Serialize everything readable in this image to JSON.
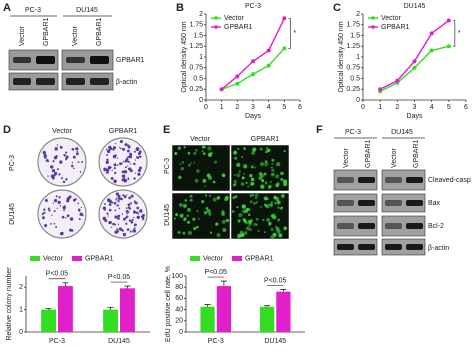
{
  "figure": {
    "letters": [
      "A",
      "B",
      "C",
      "D",
      "E",
      "F"
    ],
    "a": {
      "groups": [
        "PC-3",
        "DU145"
      ],
      "lanes": [
        "Vector",
        "GPBAR1",
        "Vector",
        "GPBAR1"
      ],
      "rows": [
        "GPBAR1",
        "β-actin"
      ]
    },
    "d": {
      "columns": [
        "Vector",
        "GPBAR1"
      ],
      "rows": [
        "PC-3",
        "DU145"
      ]
    },
    "e": {
      "columns": [
        "Vector",
        "GPBAR1"
      ],
      "rows": [
        "PC-3",
        "DU145"
      ]
    },
    "f": {
      "groups": [
        "PC-3",
        "DU145"
      ],
      "lanes": [
        "Vector",
        "GPBAR1",
        "Vector",
        "GPBAR1"
      ],
      "rows": [
        "Cleaved-casp",
        "Bax",
        "Bcl-2",
        "β-actin"
      ]
    }
  },
  "chart_data": [
    {
      "type": "line",
      "title": "PC-3",
      "x_label": "Days",
      "y_label": "Optical density 450 nm",
      "x": [
        1,
        2,
        3,
        4,
        5
      ],
      "xlim": [
        0,
        6
      ],
      "xticks": [
        0,
        1,
        2,
        3,
        4,
        5,
        6
      ],
      "ylim": [
        0,
        2
      ],
      "yticks": [
        0,
        0.25,
        0.5,
        0.75,
        1,
        1.25,
        1.5,
        1.75,
        2
      ],
      "series": [
        {
          "name": "Vector",
          "color": "#33dd22",
          "values": [
            0.25,
            0.38,
            0.6,
            0.8,
            1.2
          ]
        },
        {
          "name": "GPBAR1",
          "color": "#e020c8",
          "values": [
            0.25,
            0.55,
            0.9,
            1.15,
            1.9
          ]
        }
      ],
      "annotations": [
        "*"
      ]
    },
    {
      "type": "line",
      "title": "DU145",
      "x_label": "Days",
      "y_label": "Optical density 450 nm",
      "x": [
        1,
        2,
        3,
        4,
        5
      ],
      "xlim": [
        0,
        6
      ],
      "xticks": [
        0,
        1,
        2,
        3,
        4,
        5,
        6
      ],
      "ylim": [
        0,
        2
      ],
      "yticks": [
        0,
        0.25,
        0.5,
        0.75,
        1,
        1.25,
        1.5,
        1.75,
        2
      ],
      "series": [
        {
          "name": "Vector",
          "color": "#33dd22",
          "values": [
            0.2,
            0.4,
            0.75,
            1.15,
            1.25
          ]
        },
        {
          "name": "GPBAR1",
          "color": "#e020c8",
          "values": [
            0.25,
            0.45,
            0.9,
            1.55,
            1.85
          ]
        }
      ],
      "annotations": [
        "*"
      ]
    },
    {
      "type": "bar",
      "y_label": "Relative colony number",
      "categories": [
        "PC-3",
        "DU145"
      ],
      "ylim": [
        0,
        2.5
      ],
      "yticks": [
        0,
        1,
        2
      ],
      "series": [
        {
          "name": "Vector",
          "color": "#33dd22",
          "values": [
            1,
            1
          ],
          "errors": [
            0.05,
            0.1
          ]
        },
        {
          "name": "GPBAR1",
          "color": "#e020c8",
          "values": [
            2.05,
            1.95
          ],
          "errors": [
            0.15,
            0.1
          ]
        }
      ],
      "annotations": [
        "P<0.05",
        "P<0.05"
      ]
    },
    {
      "type": "bar",
      "y_label": "EdU positive cell rate, %",
      "categories": [
        "PC-3",
        "DU145"
      ],
      "ylim": [
        0,
        100
      ],
      "yticks": [
        0,
        20,
        40,
        60,
        80,
        100
      ],
      "series": [
        {
          "name": "Vector",
          "color": "#33dd22",
          "values": [
            45,
            45
          ],
          "errors": [
            4,
            2
          ]
        },
        {
          "name": "GPBAR1",
          "color": "#e020c8",
          "values": [
            82,
            72
          ],
          "errors": [
            9,
            4
          ]
        }
      ],
      "annotations": [
        "P<0.05",
        "P<0.05"
      ]
    }
  ]
}
